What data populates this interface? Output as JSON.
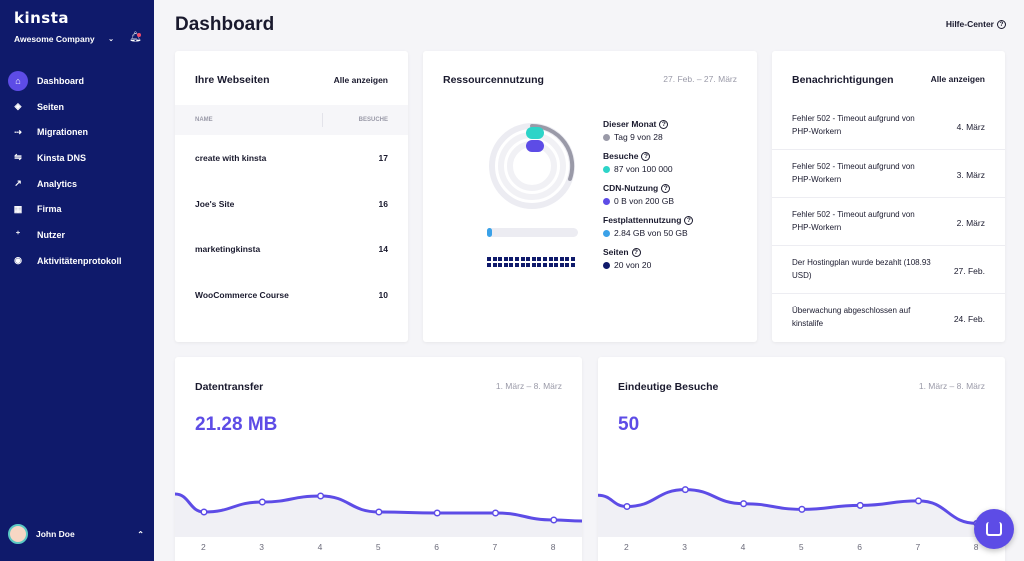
{
  "sidebar": {
    "logo": "kinsta",
    "company": "Awesome Company",
    "items": [
      {
        "label": "Dashboard",
        "icon": "home-icon",
        "glyph": "⌂"
      },
      {
        "label": "Seiten",
        "icon": "layers-icon",
        "glyph": "◈"
      },
      {
        "label": "Migrationen",
        "icon": "migration-icon",
        "glyph": "⇢"
      },
      {
        "label": "Kinsta DNS",
        "icon": "dns-icon",
        "glyph": "⇋"
      },
      {
        "label": "Analytics",
        "icon": "analytics-icon",
        "glyph": "↗"
      },
      {
        "label": "Firma",
        "icon": "building-icon",
        "glyph": "▦"
      },
      {
        "label": "Nutzer",
        "icon": "user-add-icon",
        "glyph": "⁺"
      },
      {
        "label": "Aktivitätenprotokoll",
        "icon": "eye-icon",
        "glyph": "◉"
      }
    ],
    "user": "John Doe"
  },
  "header": {
    "title": "Dashboard",
    "help": "Hilfe-Center"
  },
  "sites": {
    "title": "Ihre Webseiten",
    "link": "Alle anzeigen",
    "col_name": "NAME",
    "col_visits": "BESUCHE",
    "rows": [
      {
        "name": "create with kinsta",
        "visits": "17"
      },
      {
        "name": "Joe's Site",
        "visits": "16"
      },
      {
        "name": "marketingkinsta",
        "visits": "14"
      },
      {
        "name": "WooCommerce Course",
        "visits": "10"
      }
    ]
  },
  "resources": {
    "title": "Ressourcennutzung",
    "range": "27. Feb. – 27. März",
    "items": [
      {
        "label": "Dieser Monat",
        "value": "Tag 9 von 28",
        "color": "#9a9aa8"
      },
      {
        "label": "Besuche",
        "value": "87 von 100 000",
        "color": "#2dd4c8"
      },
      {
        "label": "CDN-Nutzung",
        "value": "0 B von 200 GB",
        "color": "#5d4ce6"
      },
      {
        "label": "Festplattennutzung",
        "value": "2.84 GB von 50 GB",
        "color": "#3aa1e8"
      },
      {
        "label": "Seiten",
        "value": "20 von 20",
        "color": "#0f1a6b"
      }
    ]
  },
  "notifications": {
    "title": "Benachrichtigungen",
    "link": "Alle anzeigen",
    "rows": [
      {
        "text": "Fehler 502 - Timeout aufgrund von PHP-Workern",
        "date": "4. März"
      },
      {
        "text": "Fehler 502 - Timeout aufgrund von PHP-Workern",
        "date": "3. März"
      },
      {
        "text": "Fehler 502 - Timeout aufgrund von PHP-Workern",
        "date": "2. März"
      },
      {
        "text": "Der Hostingplan wurde bezahlt (108.93 USD)",
        "date": "27. Feb."
      },
      {
        "text": "Überwachung abgeschlossen auf kinstalife",
        "date": "24. Feb."
      }
    ]
  },
  "transfer": {
    "title": "Datentransfer",
    "range": "1. März – 8. März",
    "value": "21.28 MB"
  },
  "visits": {
    "title": "Eindeutige Besuche",
    "range": "1. März – 8. März",
    "value": "50"
  },
  "chart_data": [
    {
      "type": "area",
      "title": "Datentransfer",
      "x": [
        "2",
        "3",
        "4",
        "5",
        "6",
        "7",
        "8"
      ],
      "series": [
        {
          "values": [
            3.2,
            4.2,
            4.8,
            3.2,
            3.1,
            3.1,
            2.4
          ]
        }
      ],
      "color": "#5d4ce6"
    },
    {
      "type": "area",
      "title": "Eindeutige Besuche",
      "x": [
        "2",
        "3",
        "4",
        "5",
        "6",
        "7",
        "8"
      ],
      "series": [
        {
          "values": [
            7,
            10,
            7.5,
            6.5,
            7.2,
            8,
            4
          ]
        }
      ],
      "color": "#5d4ce6"
    }
  ],
  "chat_icon": "chat-icon"
}
